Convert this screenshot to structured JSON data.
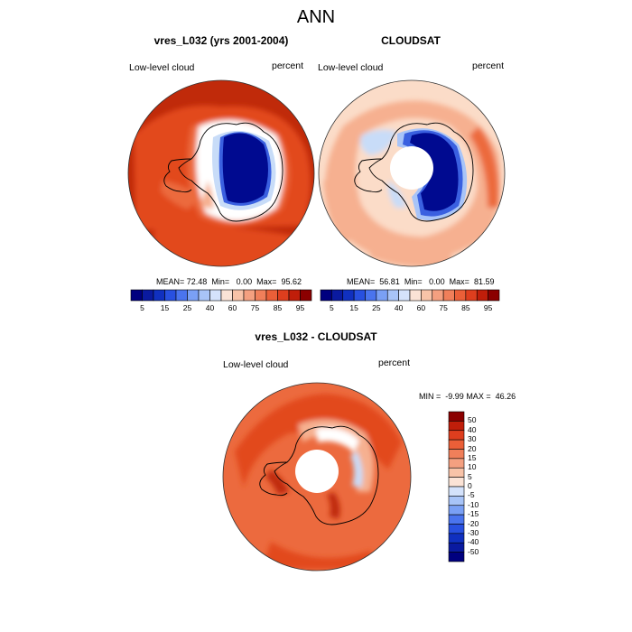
{
  "figure": {
    "title": "ANN"
  },
  "panels": [
    {
      "title": "vres_L032 (yrs 2001-2004)",
      "left_label": "Low-level cloud",
      "right_label": "percent",
      "stats": {
        "mean_label": "MEAN=",
        "mean": "72.48",
        "min_label": "Min=",
        "min": "0.00",
        "max_label": "Max=",
        "max": "95.62"
      }
    },
    {
      "title": "CLOUDSAT",
      "left_label": "Low-level cloud",
      "right_label": "percent",
      "stats": {
        "mean_label": "MEAN=",
        "mean": "56.81",
        "min_label": "Min=",
        "min": "0.00",
        "max_label": "Max=",
        "max": "81.59"
      }
    },
    {
      "title": "vres_L032 - CLOUDSAT",
      "left_label": "Low-level cloud",
      "right_label": "percent",
      "stats": {
        "min_label": "MIN =",
        "min": "-9.99",
        "max_label": "MAX =",
        "max": "46.26"
      }
    }
  ],
  "colorbar_top": {
    "labels": [
      "5",
      "15",
      "25",
      "40",
      "60",
      "75",
      "85",
      "95"
    ],
    "colors": [
      "#00007f",
      "#0a1aa0",
      "#1030c0",
      "#2850e0",
      "#4a74ee",
      "#7aa0f5",
      "#a8c4f8",
      "#d4e2fb",
      "#fbe3d6",
      "#f8c3a8",
      "#f4a080",
      "#f07f5a",
      "#ea5f38",
      "#de3e1e",
      "#c01e0a",
      "#8b0000"
    ]
  },
  "colorbar_diff": {
    "labels": [
      "50",
      "40",
      "30",
      "20",
      "15",
      "10",
      "5",
      "0",
      "-5",
      "-10",
      "-15",
      "-20",
      "-30",
      "-40",
      "-50"
    ],
    "colors": [
      "#8b0000",
      "#c01e0a",
      "#de3e1e",
      "#ea5f38",
      "#f07f5a",
      "#f4a080",
      "#f8c3a8",
      "#fbe3d6",
      "#d4e2fb",
      "#a8c4f8",
      "#7aa0f5",
      "#4a74ee",
      "#2850e0",
      "#1030c0",
      "#0a1aa0",
      "#00007f"
    ]
  },
  "map_colors": {
    "deep_red": "#c02a0a",
    "red": "#e24a1e",
    "orange_red": "#ec6a3e",
    "light_orange": "#f6b090",
    "pale": "#fbdcc8",
    "white": "#ffffff",
    "light_blue": "#c8dcf8",
    "mid_blue": "#3a60e0",
    "navy": "#000a90"
  }
}
